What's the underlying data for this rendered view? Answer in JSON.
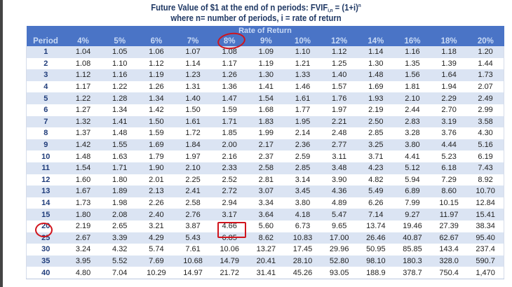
{
  "title_line1": "Future Value of $1 at the end of n periods: FVIF",
  "title_sub": "i,n",
  "title_eq": " = (1+i)",
  "title_sup": "n",
  "title_line2": "where n= number of periods, i = rate of return",
  "table": {
    "group_header": "Rate of Return",
    "columns": [
      "Period",
      "4%",
      "5%",
      "6%",
      "7%",
      "8%",
      "9%",
      "10%",
      "12%",
      "14%",
      "16%",
      "18%",
      "20%"
    ],
    "rows": [
      [
        "1",
        "1.04",
        "1.05",
        "1.06",
        "1.07",
        "1.08",
        "1.09",
        "1.10",
        "1.12",
        "1.14",
        "1.16",
        "1.18",
        "1.20"
      ],
      [
        "2",
        "1.08",
        "1.10",
        "1.12",
        "1.14",
        "1.17",
        "1.19",
        "1.21",
        "1.25",
        "1.30",
        "1.35",
        "1.39",
        "1.44"
      ],
      [
        "3",
        "1.12",
        "1.16",
        "1.19",
        "1.23",
        "1.26",
        "1.30",
        "1.33",
        "1.40",
        "1.48",
        "1.56",
        "1.64",
        "1.73"
      ],
      [
        "4",
        "1.17",
        "1.22",
        "1.26",
        "1.31",
        "1.36",
        "1.41",
        "1.46",
        "1.57",
        "1.69",
        "1.81",
        "1.94",
        "2.07"
      ],
      [
        "5",
        "1.22",
        "1.28",
        "1.34",
        "1.40",
        "1.47",
        "1.54",
        "1.61",
        "1.76",
        "1.93",
        "2.10",
        "2.29",
        "2.49"
      ],
      [
        "6",
        "1.27",
        "1.34",
        "1.42",
        "1.50",
        "1.59",
        "1.68",
        "1.77",
        "1.97",
        "2.19",
        "2.44",
        "2.70",
        "2.99"
      ],
      [
        "7",
        "1.32",
        "1.41",
        "1.50",
        "1.61",
        "1.71",
        "1.83",
        "1.95",
        "2.21",
        "2.50",
        "2.83",
        "3.19",
        "3.58"
      ],
      [
        "8",
        "1.37",
        "1.48",
        "1.59",
        "1.72",
        "1.85",
        "1.99",
        "2.14",
        "2.48",
        "2.85",
        "3.28",
        "3.76",
        "4.30"
      ],
      [
        "9",
        "1.42",
        "1.55",
        "1.69",
        "1.84",
        "2.00",
        "2.17",
        "2.36",
        "2.77",
        "3.25",
        "3.80",
        "4.44",
        "5.16"
      ],
      [
        "10",
        "1.48",
        "1.63",
        "1.79",
        "1.97",
        "2.16",
        "2.37",
        "2.59",
        "3.11",
        "3.71",
        "4.41",
        "5.23",
        "6.19"
      ],
      [
        "11",
        "1.54",
        "1.71",
        "1.90",
        "2.10",
        "2.33",
        "2.58",
        "2.85",
        "3.48",
        "4.23",
        "5.12",
        "6.18",
        "7.43"
      ],
      [
        "12",
        "1.60",
        "1.80",
        "2.01",
        "2.25",
        "2.52",
        "2.81",
        "3.14",
        "3.90",
        "4.82",
        "5.94",
        "7.29",
        "8.92"
      ],
      [
        "13",
        "1.67",
        "1.89",
        "2.13",
        "2.41",
        "2.72",
        "3.07",
        "3.45",
        "4.36",
        "5.49",
        "6.89",
        "8.60",
        "10.70"
      ],
      [
        "14",
        "1.73",
        "1.98",
        "2.26",
        "2.58",
        "2.94",
        "3.34",
        "3.80",
        "4.89",
        "6.26",
        "7.99",
        "10.15",
        "12.84"
      ],
      [
        "15",
        "1.80",
        "2.08",
        "2.40",
        "2.76",
        "3.17",
        "3.64",
        "4.18",
        "5.47",
        "7.14",
        "9.27",
        "11.97",
        "15.41"
      ],
      [
        "20",
        "2.19",
        "2.65",
        "3.21",
        "3.87",
        "4.66",
        "5.60",
        "6.73",
        "9.65",
        "13.74",
        "19.46",
        "27.39",
        "38.34"
      ],
      [
        "25",
        "2.67",
        "3.39",
        "4.29",
        "5.43",
        "6.85",
        "8.62",
        "10.83",
        "17.00",
        "26.46",
        "40.87",
        "62.67",
        "95.40"
      ],
      [
        "30",
        "3.24",
        "4.32",
        "5.74",
        "7.61",
        "10.06",
        "13.27",
        "17.45",
        "29.96",
        "50.95",
        "85.85",
        "143.4",
        "237.4"
      ],
      [
        "35",
        "3.95",
        "5.52",
        "7.69",
        "10.68",
        "14.79",
        "20.41",
        "28.10",
        "52.80",
        "98.10",
        "180.3",
        "328.0",
        "590.7"
      ],
      [
        "40",
        "4.80",
        "7.04",
        "10.29",
        "14.97",
        "21.72",
        "31.41",
        "45.26",
        "93.05",
        "188.9",
        "378.7",
        "750.4",
        "1,470"
      ]
    ]
  },
  "colors": {
    "header": "#4a74c6",
    "stripe": "#dbe4f3",
    "annotation": "#d0141c"
  }
}
